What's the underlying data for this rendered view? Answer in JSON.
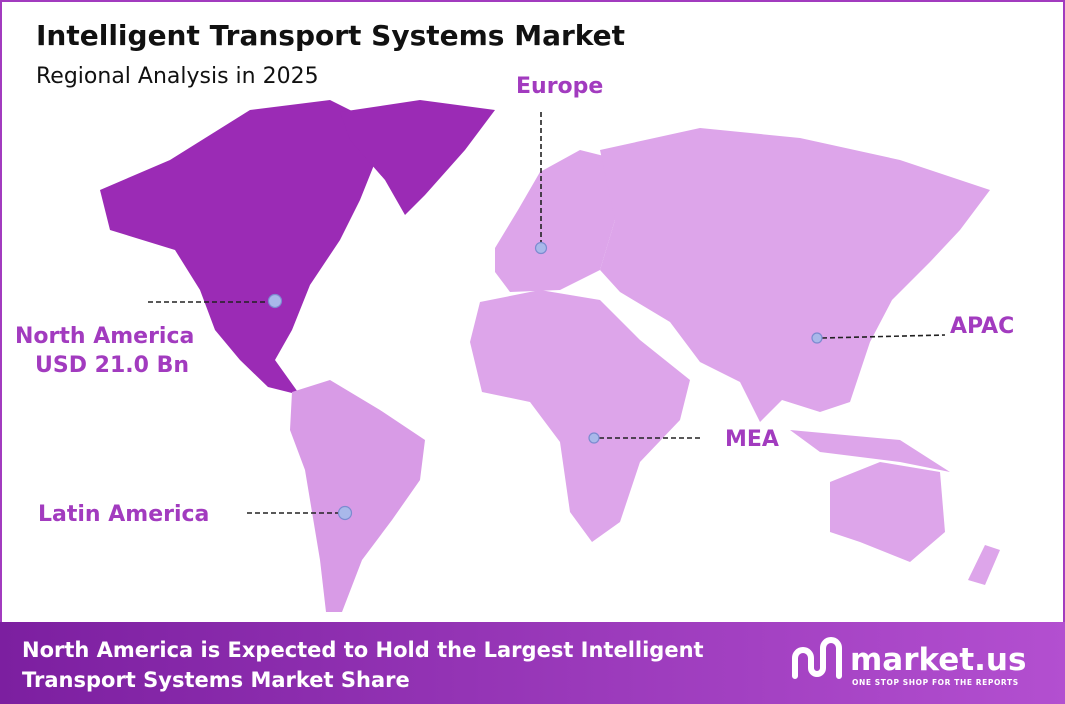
{
  "header": {
    "title": "Intelligent Transport Systems Market",
    "subtitle": "Regional Analysis in 2025"
  },
  "regions": [
    {
      "label": "Europe"
    },
    {
      "label": "North America",
      "value": "USD 21.0 Bn"
    },
    {
      "label": "APAC"
    },
    {
      "label": "MEA"
    },
    {
      "label": "Latin America"
    }
  ],
  "footer": {
    "lines": [
      "North America is Expected to Hold the Largest Intelligent",
      "Transport Systems Market Share"
    ]
  },
  "logo": {
    "name": "market.us",
    "tagline": "ONE STOP SHOP FOR THE REPORTS"
  }
}
